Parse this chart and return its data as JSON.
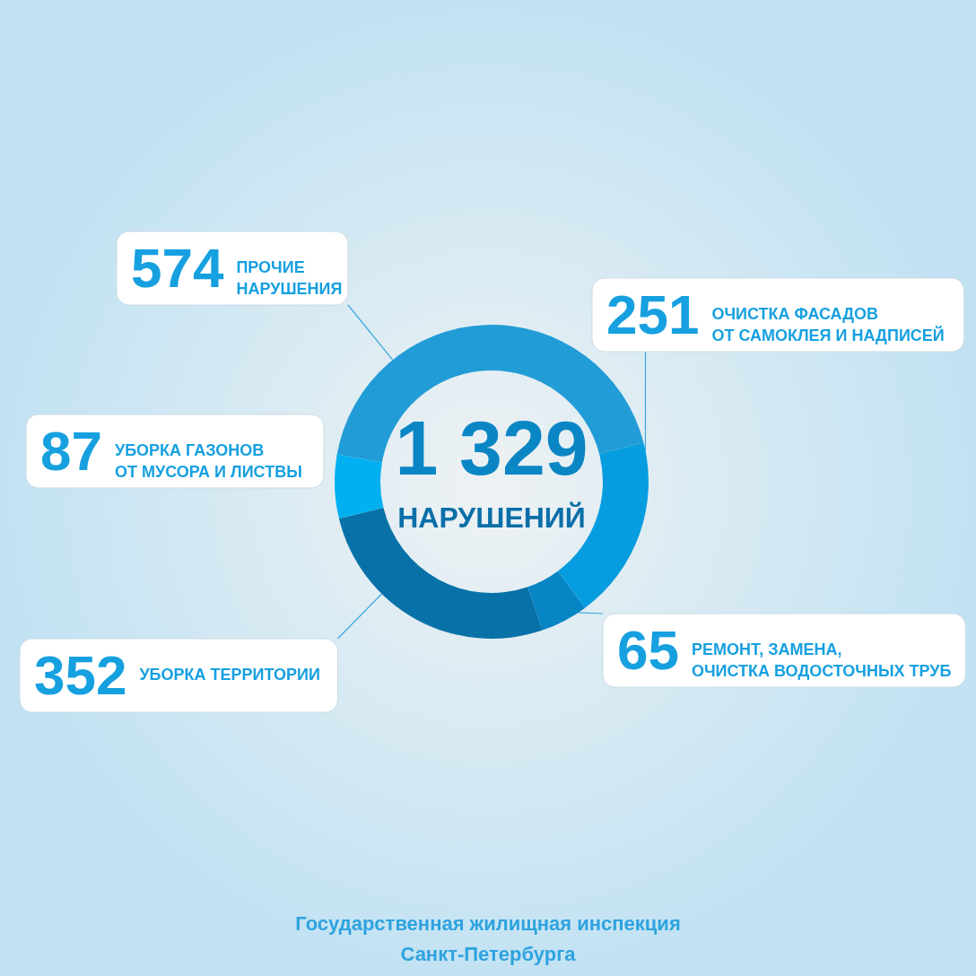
{
  "chart_data": {
    "type": "donut",
    "categories": [
      "ПРОЧИЕ\nНАРУШЕНИЯ",
      "ОЧИСТКА ФАСАДОВ\nОТ САМОКЛЕЯ И НАДПИСЕЙ",
      "РЕМОНТ, ЗАМЕНА,\nОЧИСТКА ВОДОСТОЧНЫХ ТРУБ",
      "УБОРКА ТЕРРИТОРИИ",
      "УБОРКА ГАЗОНОВ\nОТ МУСОРА И ЛИСТВЫ"
    ],
    "values": [
      574,
      251,
      65,
      352,
      87
    ],
    "colors": [
      "#229cd6",
      "#069de0",
      "#0785c5",
      "#0872a8",
      "#00b0f0"
    ],
    "data_labels": true,
    "annotations": [
      "1 329",
      "НАРУШЕНИЙ",
      "Государственная жилищная инспекция\nСанкт-Петербурга"
    ]
  }
}
